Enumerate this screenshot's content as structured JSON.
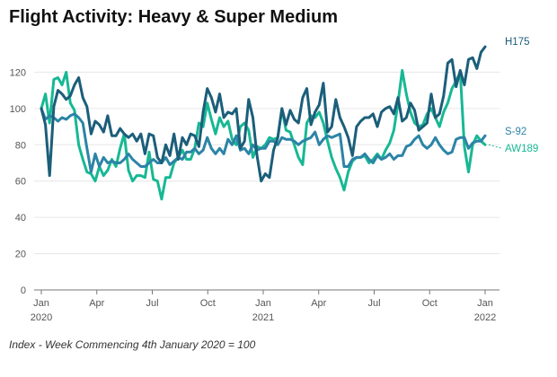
{
  "title": "Flight Activity: Heavy & Super Medium",
  "footnote": "Index - Week Commencing 4th January 2020 = 100",
  "colors": {
    "H175": "#1b5e7a",
    "S-92": "#2c84a6",
    "AW189": "#17b894",
    "grid": "#e6e6e6",
    "axis": "#777777"
  },
  "chart_data": {
    "type": "line",
    "title": "Flight Activity: Heavy & Super Medium",
    "xlabel": "",
    "ylabel": "",
    "note": "Index - Week Commencing 4th January 2020 = 100",
    "x_range": [
      0,
      104
    ],
    "ylim": [
      0,
      140
    ],
    "yticks": [
      0,
      20,
      40,
      60,
      80,
      100,
      120
    ],
    "x_ticks": [
      {
        "pos": 0,
        "label": "Jan",
        "sub": "2020"
      },
      {
        "pos": 13,
        "label": "Apr",
        "sub": ""
      },
      {
        "pos": 26,
        "label": "Jul",
        "sub": ""
      },
      {
        "pos": 39,
        "label": "Oct",
        "sub": ""
      },
      {
        "pos": 52,
        "label": "Jan",
        "sub": "2021"
      },
      {
        "pos": 65,
        "label": "Apr",
        "sub": ""
      },
      {
        "pos": 78,
        "label": "Jul",
        "sub": ""
      },
      {
        "pos": 91,
        "label": "Oct",
        "sub": ""
      },
      {
        "pos": 104,
        "label": "Jan",
        "sub": "2022"
      }
    ],
    "grid": true,
    "series": [
      {
        "name": "AW189",
        "values": [
          100,
          108,
          92,
          116,
          117,
          113,
          120,
          103,
          99,
          80,
          72,
          65,
          64,
          60,
          68,
          63,
          66,
          72,
          68,
          78,
          86,
          66,
          60,
          63,
          63,
          62,
          76,
          61,
          60,
          50,
          62,
          62,
          70,
          73,
          77,
          72,
          72,
          78,
          92,
          90,
          103,
          94,
          86,
          95,
          90,
          93,
          83,
          80,
          90,
          92,
          88,
          73,
          79,
          78,
          80,
          84,
          83,
          84,
          100,
          88,
          87,
          80,
          73,
          69,
          92,
          96,
          95,
          98,
          92,
          82,
          73,
          67,
          62,
          55,
          65,
          71,
          73,
          73,
          74,
          70,
          72,
          75,
          72,
          77,
          81,
          88,
          103,
          121,
          108,
          98,
          92,
          90,
          91,
          97,
          100,
          95,
          90,
          98,
          103,
          111,
          115,
          120,
          79,
          65,
          80,
          85,
          82,
          80
        ]
      },
      {
        "name": "S-92",
        "values": [
          100,
          94,
          96,
          95,
          93,
          95,
          94,
          96,
          97,
          95,
          92,
          78,
          65,
          75,
          68,
          73,
          70,
          71,
          70,
          70,
          72,
          75,
          72,
          70,
          68,
          68,
          70,
          72,
          70,
          70,
          73,
          69,
          71,
          73,
          72,
          76,
          76,
          78,
          75,
          77,
          84,
          78,
          75,
          78,
          75,
          83,
          80,
          85,
          77,
          78,
          75,
          80,
          77,
          78,
          78,
          82,
          82,
          80,
          84,
          83,
          83,
          82,
          80,
          82,
          83,
          84,
          87,
          80,
          83,
          85,
          84,
          85,
          86,
          68,
          68,
          72,
          73,
          73,
          75,
          72,
          70,
          74,
          72,
          73,
          75,
          72,
          74,
          74,
          79,
          80,
          83,
          85,
          80,
          78,
          80,
          84,
          80,
          77,
          75,
          76,
          83,
          84,
          84,
          78,
          81,
          82,
          82,
          85
        ]
      },
      {
        "name": "H175",
        "values": [
          100,
          91,
          63,
          101,
          110,
          108,
          105,
          107,
          113,
          117,
          106,
          101,
          86,
          93,
          91,
          87,
          96,
          85,
          85,
          89,
          86,
          84,
          86,
          82,
          86,
          75,
          86,
          85,
          73,
          70,
          80,
          74,
          86,
          72,
          84,
          80,
          86,
          85,
          79,
          98,
          111,
          106,
          98,
          108,
          95,
          98,
          97,
          100,
          78,
          82,
          105,
          95,
          74,
          60,
          64,
          62,
          77,
          84,
          100,
          91,
          99,
          94,
          92,
          106,
          111,
          91,
          98,
          102,
          114,
          87,
          90,
          105,
          95,
          90,
          84,
          74,
          90,
          93,
          95,
          95,
          97,
          90,
          98,
          100,
          101,
          97,
          106,
          93,
          95,
          103,
          99,
          88,
          90,
          92,
          108,
          95,
          97,
          107,
          125,
          127,
          112,
          121,
          113,
          127,
          128,
          122,
          131,
          134
        ]
      }
    ]
  }
}
